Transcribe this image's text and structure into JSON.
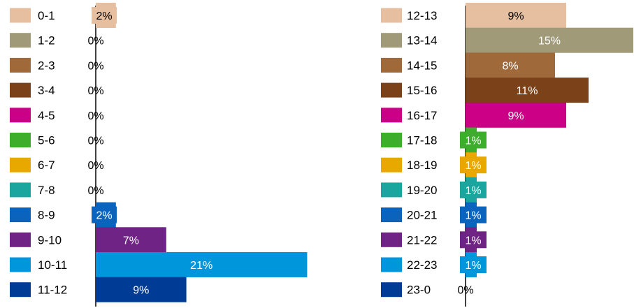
{
  "chart_data": [
    {
      "type": "bar",
      "orientation": "horizontal",
      "categories": [
        "0-1",
        "1-2",
        "2-3",
        "3-4",
        "4-5",
        "5-6",
        "6-7",
        "7-8",
        "8-9",
        "9-10",
        "10-11",
        "11-12"
      ],
      "values": [
        2,
        0,
        0,
        0,
        0,
        0,
        0,
        0,
        2,
        7,
        21,
        9
      ],
      "labels": [
        "2%",
        "0%",
        "0%",
        "0%",
        "0%",
        "0%",
        "0%",
        "0%",
        "2%",
        "7%",
        "21%",
        "9%"
      ],
      "colors": [
        "#E6BFA1",
        "#A09A78",
        "#A0693A",
        "#7B4119",
        "#CC0086",
        "#3DAE2B",
        "#E8A800",
        "#1AA69E",
        "#0A64BE",
        "#6E2385",
        "#0096DC",
        "#003C96"
      ],
      "legend_position": "left"
    },
    {
      "type": "bar",
      "orientation": "horizontal",
      "categories": [
        "12-13",
        "13-14",
        "14-15",
        "15-16",
        "16-17",
        "17-18",
        "18-19",
        "19-20",
        "20-21",
        "21-22",
        "22-23",
        "23-0"
      ],
      "values": [
        9,
        15,
        8,
        11,
        9,
        1,
        1,
        1,
        1,
        1,
        1,
        0
      ],
      "labels": [
        "9%",
        "15%",
        "8%",
        "11%",
        "9%",
        "1%",
        "1%",
        "1%",
        "1%",
        "1%",
        "1%",
        "0%"
      ],
      "colors": [
        "#E6BFA1",
        "#A09A78",
        "#A0693A",
        "#7B4119",
        "#CC0086",
        "#3DAE2B",
        "#E8A800",
        "#1AA69E",
        "#0A64BE",
        "#6E2385",
        "#0096DC",
        "#003C96"
      ],
      "legend_position": "left"
    }
  ]
}
